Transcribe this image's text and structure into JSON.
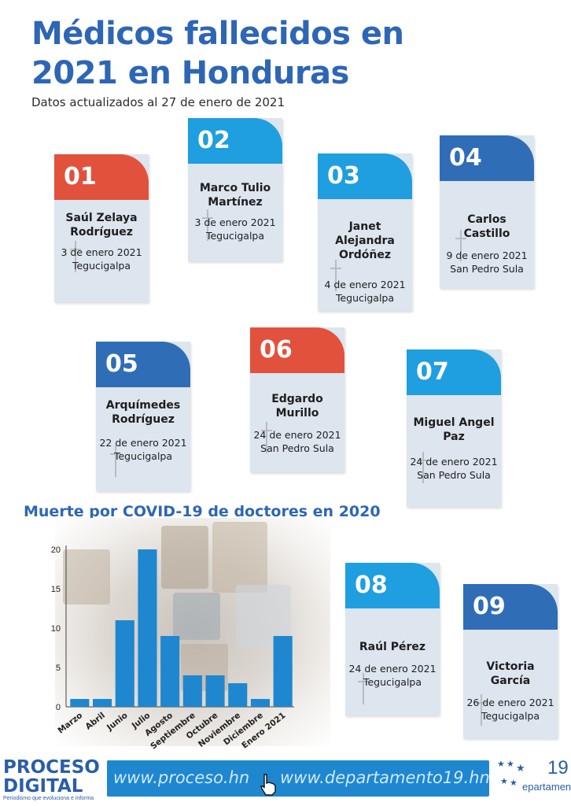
{
  "title_line1": "Médicos fallecidos en",
  "title_line2": "2021 en Honduras",
  "subtitle": "Datos actualizados al 27 de enero de 2021",
  "cards": [
    {
      "number": "01",
      "name": "Saúl Zelaya Rodríguez",
      "date": "3 de enero 2021",
      "city": "Tegucigalpa",
      "color": "#e2513c"
    },
    {
      "number": "02",
      "name": "Marco Tulio Martínez",
      "date": "3 de enero 2021",
      "city": "Tegucigalpa",
      "color": "#1f9ee0"
    },
    {
      "number": "03",
      "name": "Janet Alejandra Ordóñez",
      "date": "4 de enero 2021",
      "city": "Tegucigalpa",
      "color": "#1f9ee0"
    },
    {
      "number": "04",
      "name": "Carlos Castillo",
      "date": "9 de enero 2021",
      "city": "San Pedro Sula",
      "color": "#2f6db6"
    },
    {
      "number": "05",
      "name": "Arquímedes Rodríguez",
      "date": "22 de enero 2021",
      "city": "Tegucigalpa",
      "color": "#2f6db6"
    },
    {
      "number": "06",
      "name": "Edgardo Murillo",
      "date": "24 de enero 2021",
      "city": "San Pedro Sula",
      "color": "#e2513c"
    },
    {
      "number": "07",
      "name": "Miguel Angel Paz",
      "date": "24 de enero 2021",
      "city": "San Pedro Sula",
      "color": "#1f9ee0"
    },
    {
      "number": "08",
      "name": "Raúl Pérez",
      "date": "24 de enero 2021",
      "city": "Tegucigalpa",
      "color": "#1f9ee0"
    },
    {
      "number": "09",
      "name": "Victoria García",
      "date": "26 de enero 2021",
      "city": "Tegucigalpa",
      "color": "#2f6db6"
    }
  ],
  "chart_data": {
    "type": "bar",
    "title": "Muerte por COVID-19 de doctores en 2020",
    "categories": [
      "Marzo",
      "Abril",
      "Junio",
      "Julio",
      "Agosto",
      "Septiembre",
      "Octubre",
      "Noviembre",
      "Diciembre",
      "Enero 2021"
    ],
    "values": [
      1,
      1,
      11,
      20,
      9,
      4,
      4,
      3,
      1,
      9
    ],
    "ylim": [
      0,
      20
    ],
    "yticks": [
      0,
      5,
      10,
      15,
      20
    ],
    "grid": false,
    "bar_color": "#1e87cf"
  },
  "footer": {
    "logo_line1": "PROCESO",
    "logo_line2": "DIGITAL",
    "logo_tagline": "Periodismo que evoluciona e informa",
    "url1": "www.proceso.hn",
    "url2": "www.departamento19.hn",
    "dept_number": "19",
    "dept_name": "epartamento"
  },
  "icons": [
    "cross-icon",
    "cursor-hand-icon",
    "star-icon"
  ]
}
